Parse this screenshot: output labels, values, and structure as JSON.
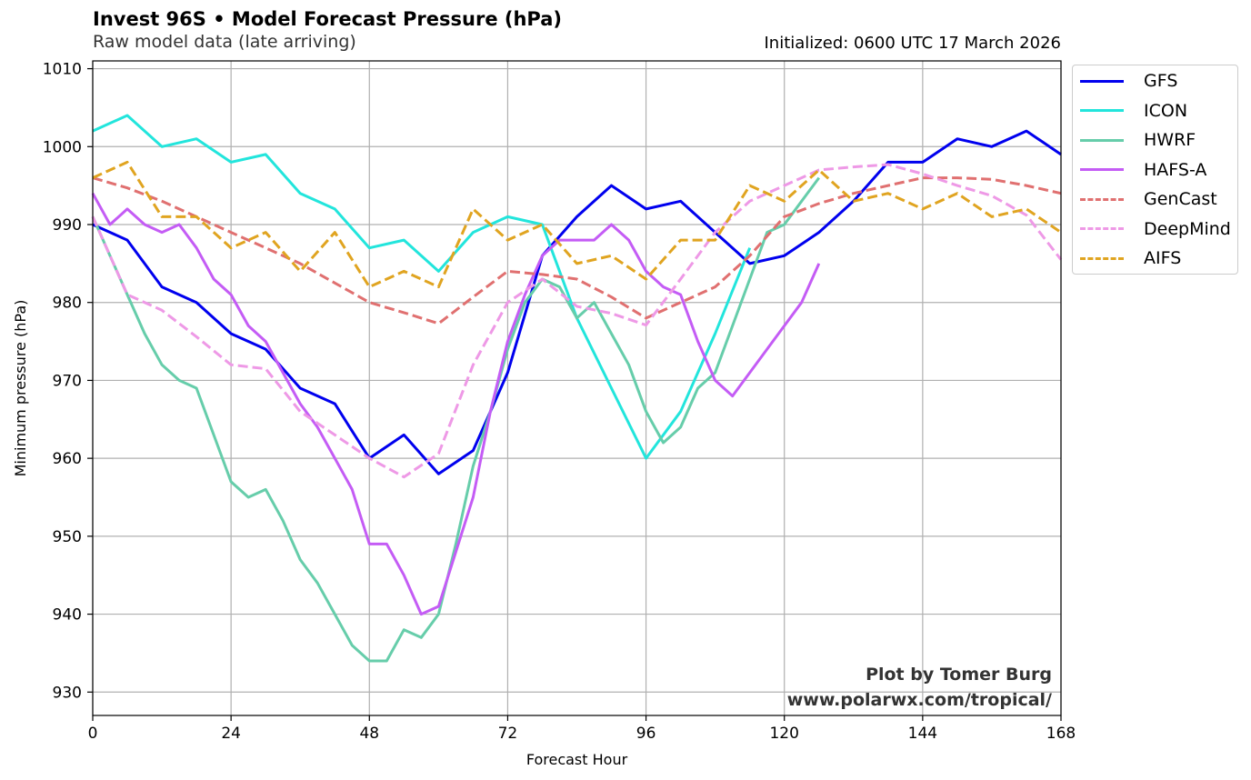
{
  "header": {
    "title": "Invest 96S • Model Forecast Pressure (hPa)",
    "subtitle": "Raw model data (late arriving)",
    "initialized": "Initialized: 0600 UTC 17 March 2026"
  },
  "credit": {
    "line1": "Plot by Tomer Burg",
    "line2": "www.polarwx.com/tropical/"
  },
  "chart_data": {
    "type": "line",
    "title": "Invest 96S • Model Forecast Pressure (hPa)",
    "subtitle": "Raw model data (late arriving)",
    "xlabel": "Forecast Hour",
    "ylabel": "Minimum pressure (hPa)",
    "xlim": [
      0,
      168
    ],
    "ylim": [
      927,
      1011
    ],
    "xticks": [
      0,
      24,
      48,
      72,
      96,
      120,
      144,
      168
    ],
    "yticks": [
      930,
      940,
      950,
      960,
      970,
      980,
      990,
      1000,
      1010
    ],
    "grid": true,
    "legend_position": "outside-top-right",
    "series": [
      {
        "name": "GFS",
        "color": "#0000ee",
        "style": "solid",
        "x": [
          0,
          6,
          12,
          18,
          24,
          30,
          36,
          42,
          48,
          54,
          60,
          66,
          72,
          78,
          84,
          90,
          96,
          102,
          108,
          114,
          120,
          126,
          132,
          138,
          144,
          150,
          156,
          162,
          168
        ],
        "y": [
          990,
          988,
          982,
          980,
          976,
          974,
          969,
          967,
          960,
          963,
          958,
          961,
          971,
          986,
          991,
          995,
          992,
          993,
          989,
          985,
          986,
          989,
          993,
          998,
          998,
          1001,
          1000,
          1002,
          999
        ]
      },
      {
        "name": "ICON",
        "color": "#22e5dc",
        "style": "solid",
        "x": [
          0,
          6,
          12,
          18,
          24,
          30,
          36,
          42,
          48,
          54,
          60,
          66,
          72,
          78,
          84,
          90,
          96,
          102,
          108,
          114
        ],
        "y": [
          1002,
          1004,
          1000,
          1001,
          998,
          999,
          994,
          992,
          987,
          988,
          984,
          989,
          991,
          990,
          978,
          969,
          960,
          966,
          976,
          987
        ]
      },
      {
        "name": "HWRF",
        "color": "#66cdaa",
        "style": "solid",
        "x": [
          0,
          3,
          6,
          9,
          12,
          15,
          18,
          21,
          24,
          27,
          30,
          33,
          36,
          39,
          42,
          45,
          48,
          51,
          54,
          57,
          60,
          63,
          66,
          69,
          72,
          75,
          78,
          81,
          84,
          87,
          90,
          93,
          96,
          99,
          102,
          105,
          108,
          111,
          114,
          117,
          120,
          123,
          126
        ],
        "y": [
          991,
          986,
          981,
          976,
          972,
          970,
          969,
          963,
          957,
          955,
          956,
          952,
          947,
          944,
          940,
          936,
          934,
          934,
          938,
          937,
          940,
          949,
          959,
          966,
          974,
          980,
          983,
          982,
          978,
          980,
          976,
          972,
          966,
          962,
          964,
          969,
          971,
          977,
          983,
          989,
          990,
          993,
          996
        ]
      },
      {
        "name": "HAFS-A",
        "color": "#c45cf5",
        "style": "solid",
        "x": [
          0,
          3,
          6,
          9,
          12,
          15,
          18,
          21,
          24,
          27,
          30,
          33,
          36,
          39,
          42,
          45,
          48,
          51,
          54,
          57,
          60,
          63,
          66,
          69,
          72,
          75,
          78,
          81,
          84,
          87,
          90,
          93,
          96,
          99,
          102,
          105,
          108,
          111,
          114,
          117,
          120,
          123,
          126
        ],
        "y": [
          994,
          990,
          992,
          990,
          989,
          990,
          987,
          983,
          981,
          977,
          975,
          971,
          967,
          964,
          960,
          956,
          949,
          949,
          945,
          940,
          941,
          948,
          955,
          966,
          975,
          981,
          986,
          988,
          988,
          988,
          990,
          988,
          984,
          982,
          981,
          975,
          970,
          968,
          971,
          974,
          977,
          980,
          985
        ]
      },
      {
        "name": "GenCast",
        "color": "#e07070",
        "style": "dashed",
        "x": [
          0,
          6,
          12,
          18,
          24,
          30,
          36,
          42,
          48,
          54,
          60,
          66,
          72,
          78,
          84,
          90,
          96,
          102,
          108,
          114,
          120,
          126,
          132,
          138,
          144,
          150,
          156,
          162,
          168
        ],
        "y": [
          996,
          994.7,
          993,
          991,
          989,
          987,
          985,
          982.5,
          980,
          978.7,
          977.3,
          980.7,
          984,
          983.6,
          983,
          980.7,
          978,
          980,
          982,
          986,
          991,
          992.7,
          994,
          995,
          996,
          996,
          995.8,
          995,
          994
        ]
      },
      {
        "name": "DeepMind",
        "color": "#ee99e6",
        "style": "dashed",
        "x": [
          0,
          6,
          12,
          18,
          24,
          30,
          36,
          42,
          48,
          54,
          60,
          66,
          72,
          78,
          84,
          90,
          96,
          102,
          108,
          114,
          120,
          126,
          132,
          138,
          144,
          150,
          156,
          162,
          168
        ],
        "y": [
          991,
          981,
          979,
          975.6,
          972,
          971.5,
          966,
          963,
          960,
          957.6,
          960.6,
          972,
          980,
          983,
          979.5,
          978.6,
          977.1,
          983,
          989,
          993,
          995,
          997,
          997.4,
          997.7,
          996.5,
          995,
          993.7,
          991.2,
          985.5
        ]
      },
      {
        "name": "AIFS",
        "color": "#e0a420",
        "style": "dashed",
        "x": [
          0,
          6,
          12,
          18,
          24,
          30,
          36,
          42,
          48,
          54,
          60,
          66,
          72,
          78,
          84,
          90,
          96,
          102,
          108,
          114,
          120,
          126,
          132,
          138,
          144,
          150,
          156,
          162,
          168
        ],
        "y": [
          996,
          998,
          991,
          991,
          987,
          989,
          984,
          989,
          982,
          984,
          982,
          992,
          988,
          990,
          985,
          986,
          983,
          988,
          988,
          995,
          993,
          997,
          993,
          994,
          992,
          994,
          991,
          992,
          989
        ]
      }
    ]
  }
}
